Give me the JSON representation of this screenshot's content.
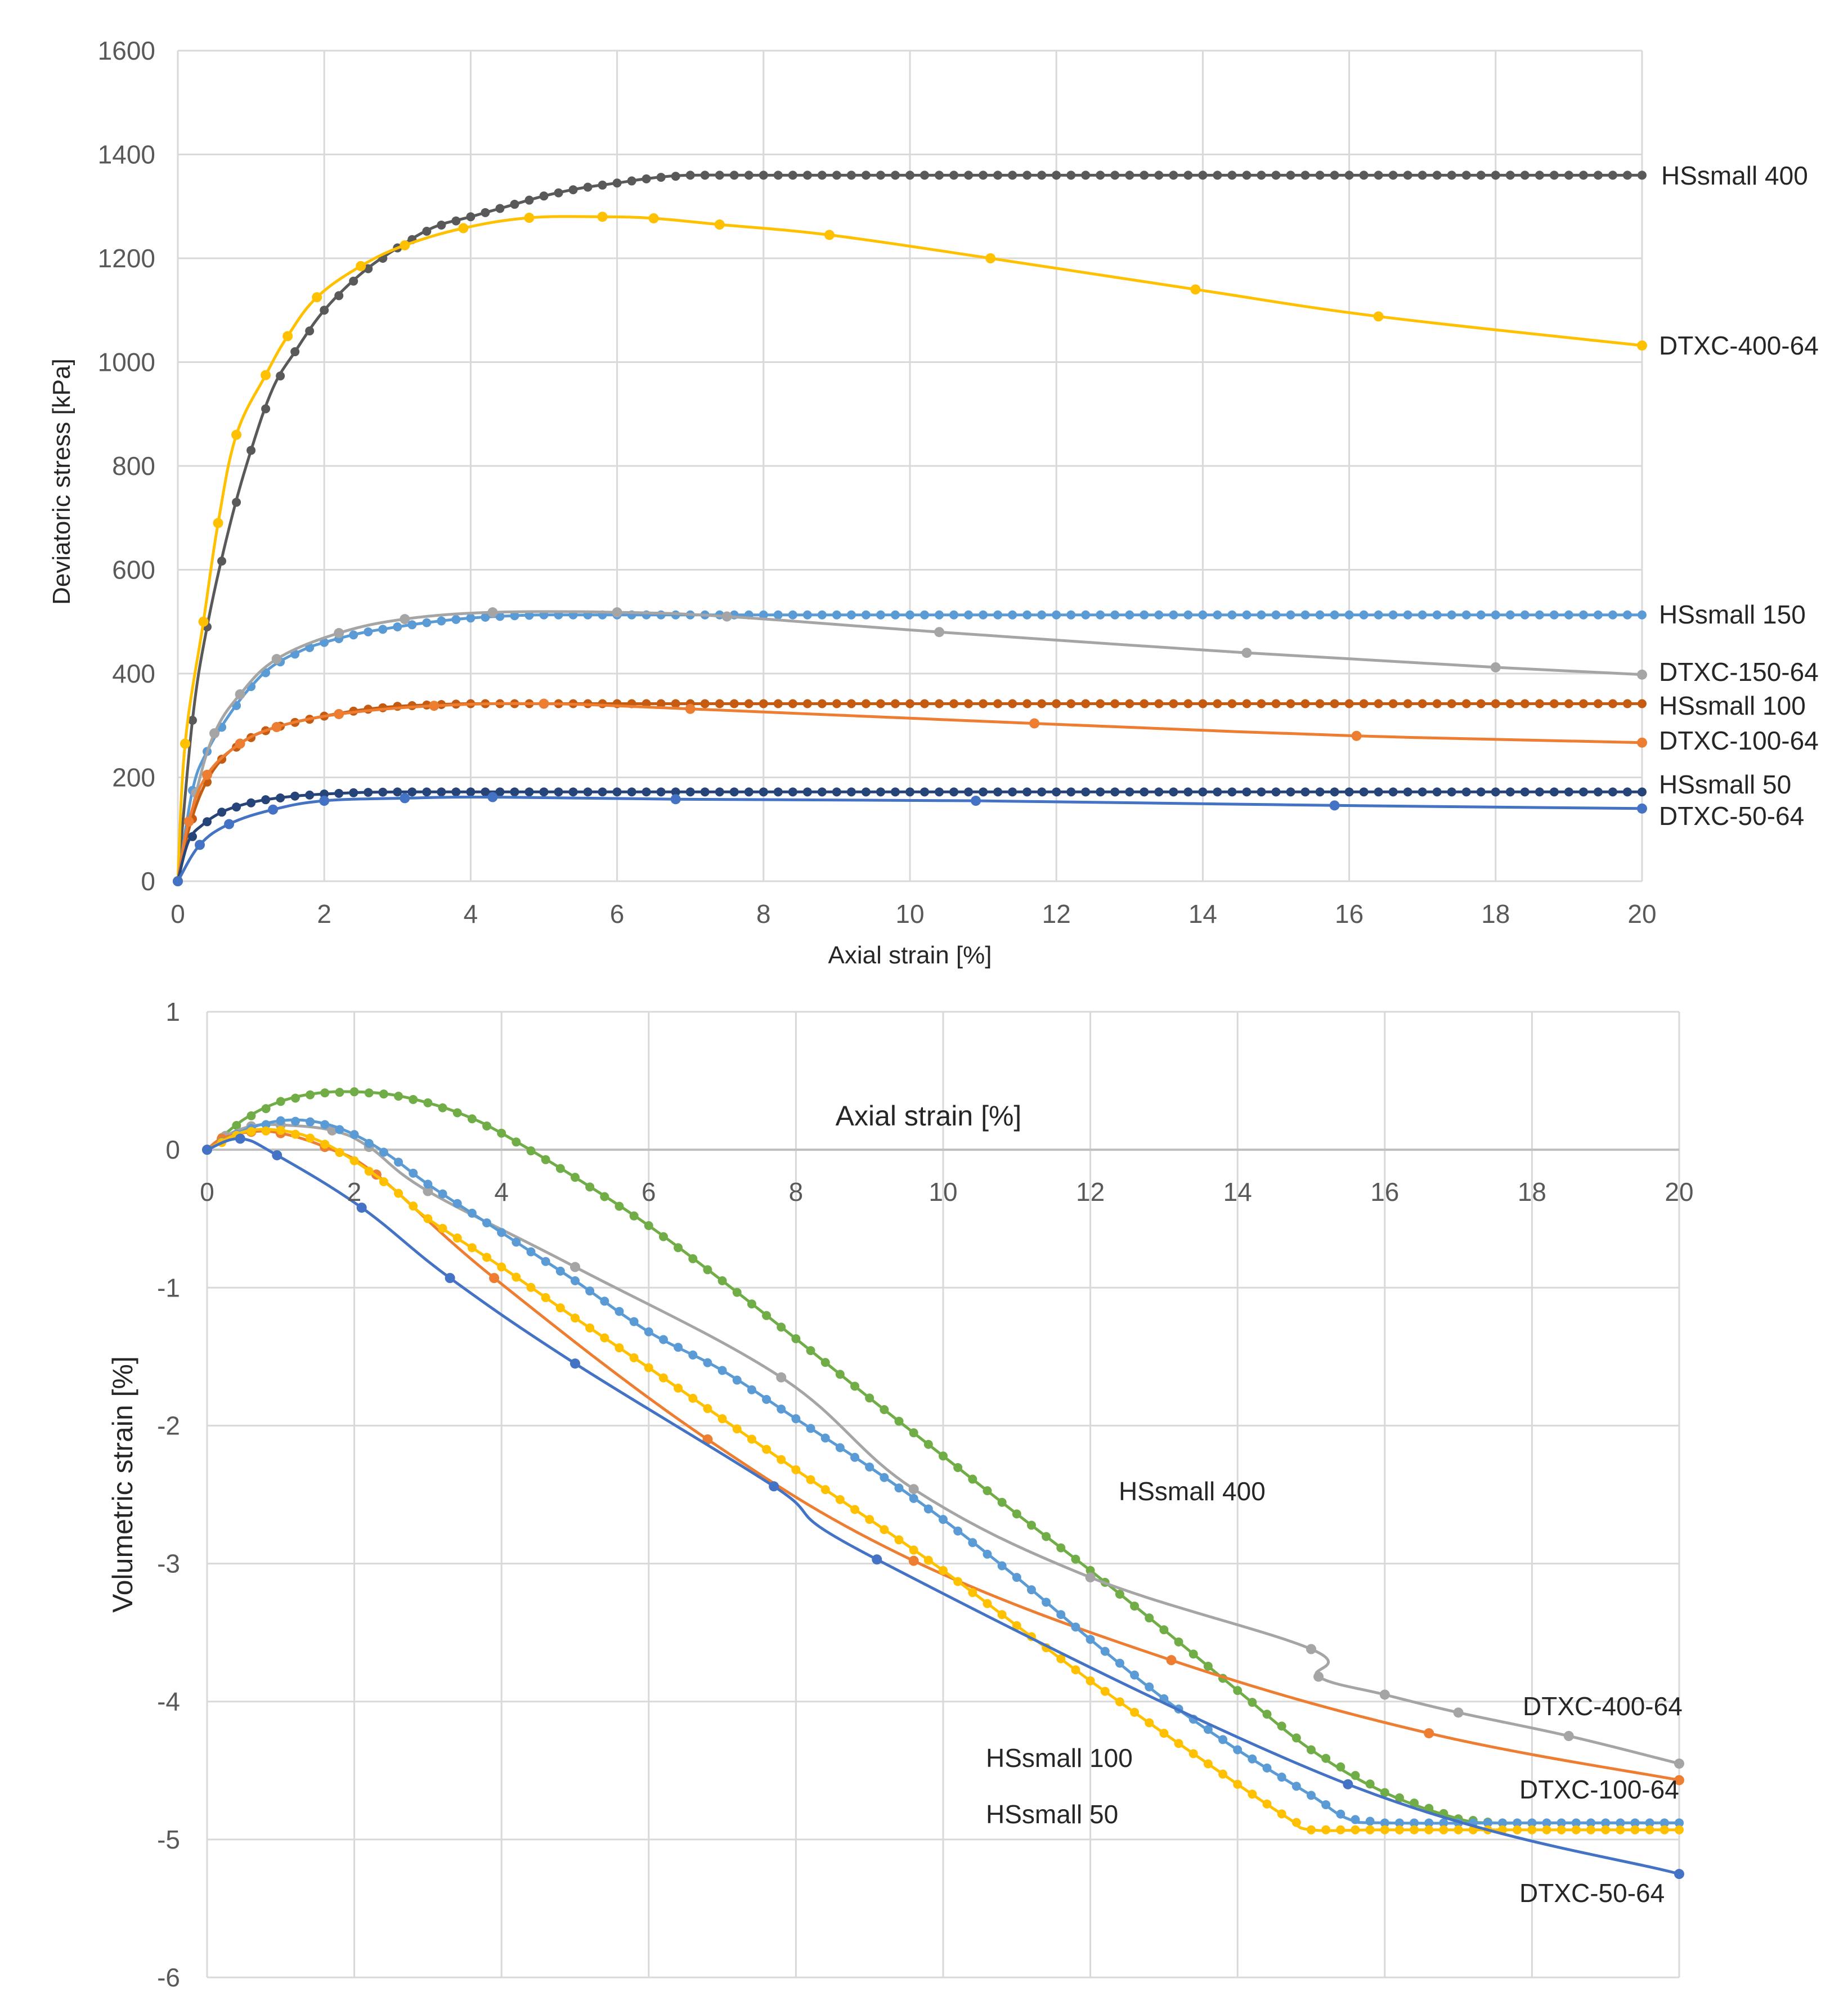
{
  "chart_data": [
    {
      "type": "line",
      "xlabel": "Axial strain [%]",
      "ylabel": "Deviatoric stress [kPa]",
      "xlim": [
        0,
        20
      ],
      "ylim": [
        0,
        1600
      ],
      "xticks": [
        "0",
        "2",
        "4",
        "6",
        "8",
        "10",
        "12",
        "14",
        "16",
        "18",
        "20"
      ],
      "yticks": [
        "0",
        "200",
        "400",
        "600",
        "800",
        "1000",
        "1200",
        "1400",
        "1600"
      ],
      "grid": true,
      "legend": "labels at right end of each series",
      "series": [
        {
          "name": "HSsmall 400",
          "color": "#595959",
          "marker_spacing": "dense",
          "x": [
            0,
            0.2,
            0.4,
            0.7,
            1.0,
            1.3,
            1.6,
            2.0,
            2.5,
            3.0,
            3.5,
            4.0,
            4.5,
            5.0,
            5.5,
            6.0,
            6.5,
            7.0,
            8,
            10,
            12,
            14,
            16,
            18,
            20
          ],
          "y": [
            0,
            310,
            490,
            680,
            830,
            950,
            1020,
            1100,
            1170,
            1220,
            1260,
            1280,
            1300,
            1320,
            1335,
            1345,
            1355,
            1360,
            1360,
            1360,
            1360,
            1360,
            1360,
            1360,
            1360
          ]
        },
        {
          "name": "DTXC-400-64",
          "color": "#FFC000",
          "marker_spacing": "sparse",
          "x": [
            0,
            0.1,
            0.35,
            0.55,
            0.8,
            1.2,
            1.5,
            1.9,
            2.5,
            3.1,
            3.9,
            4.8,
            5.8,
            6.5,
            7.4,
            8.9,
            11.1,
            13.9,
            16.4,
            20
          ],
          "y": [
            0,
            265,
            500,
            690,
            860,
            975,
            1050,
            1125,
            1185,
            1225,
            1258,
            1278,
            1280,
            1277,
            1265,
            1245,
            1200,
            1140,
            1088,
            1032
          ]
        },
        {
          "name": "HSsmall 150",
          "color": "#5B9BD5",
          "marker_spacing": "dense",
          "x": [
            0,
            0.2,
            0.4,
            0.7,
            1.0,
            1.3,
            1.7,
            2.0,
            2.5,
            3.0,
            3.5,
            4.0,
            4.5,
            5.0,
            6,
            8,
            10,
            12,
            14,
            16,
            18,
            20
          ],
          "y": [
            0,
            175,
            250,
            320,
            375,
            415,
            445,
            460,
            478,
            490,
            500,
            507,
            511,
            513,
            513,
            513,
            513,
            513,
            513,
            513,
            513,
            513
          ]
        },
        {
          "name": "DTXC-150-64",
          "color": "#A5A5A5",
          "marker_spacing": "sparse",
          "x": [
            0,
            0.25,
            0.5,
            0.85,
            1.35,
            2.2,
            3.1,
            4.3,
            6.0,
            7.5,
            10.4,
            14.6,
            18.0,
            20
          ],
          "y": [
            0,
            170,
            285,
            360,
            428,
            478,
            505,
            518,
            518,
            510,
            480,
            440,
            412,
            398
          ]
        },
        {
          "name": "HSsmall 100",
          "color": "#C55A11",
          "marker_spacing": "dense",
          "x": [
            0,
            0.15,
            0.35,
            0.6,
            0.9,
            1.2,
            1.5,
            2.0,
            2.5,
            3.0,
            3.5,
            4.0,
            5,
            6,
            8,
            10,
            12,
            14,
            16,
            18,
            20
          ],
          "y": [
            0,
            100,
            180,
            235,
            270,
            290,
            303,
            318,
            330,
            337,
            340,
            342,
            342,
            342,
            342,
            342,
            342,
            342,
            342,
            342,
            342
          ]
        },
        {
          "name": "DTXC-100-64",
          "color": "#ED7D31",
          "marker_spacing": "sparse",
          "x": [
            0,
            0.15,
            0.4,
            0.85,
            1.35,
            2.2,
            3.5,
            5.0,
            7.0,
            11.7,
            16.1,
            20
          ],
          "y": [
            0,
            115,
            205,
            265,
            297,
            322,
            338,
            342,
            332,
            304,
            280,
            267
          ]
        },
        {
          "name": "HSsmall 50",
          "color": "#264478",
          "marker_spacing": "dense",
          "x": [
            0,
            0.15,
            0.35,
            0.6,
            0.9,
            1.2,
            1.6,
            2.0,
            2.5,
            3.0,
            3.5,
            4,
            6,
            8,
            10,
            12,
            14,
            16,
            18,
            20
          ],
          "y": [
            0,
            78,
            110,
            133,
            148,
            157,
            164,
            168,
            171,
            172,
            172,
            172,
            172,
            172,
            172,
            172,
            172,
            172,
            172,
            172
          ]
        },
        {
          "name": "DTXC-50-64",
          "color": "#4472C4",
          "marker_spacing": "sparse",
          "x": [
            0,
            0.3,
            0.7,
            1.3,
            2.0,
            3.1,
            4.3,
            6.8,
            10.9,
            15.8,
            20
          ],
          "y": [
            0,
            70,
            110,
            138,
            155,
            160,
            162,
            158,
            155,
            146,
            140
          ]
        }
      ]
    },
    {
      "type": "line",
      "xlabel": "Axial strain [%]",
      "ylabel": "Volumetric strain [%]",
      "xlim": [
        0,
        20
      ],
      "ylim": [
        -6,
        1
      ],
      "xticks": [
        "0",
        "2",
        "4",
        "6",
        "8",
        "10",
        "12",
        "14",
        "16",
        "18",
        "20"
      ],
      "yticks": [
        "-6",
        "-5",
        "-4",
        "-3",
        "-2",
        "-1",
        "0",
        "1"
      ],
      "grid": true,
      "legend": "labels placed next to series",
      "series": [
        {
          "name": "HSsmall 400",
          "color": "#70AD47",
          "marker_spacing": "dense",
          "x": [
            0,
            0.5,
            1.0,
            1.5,
            2.0,
            2.5,
            3.0,
            3.5,
            4.0,
            5,
            6,
            7,
            8,
            9,
            10,
            11,
            12,
            13,
            14,
            15,
            16,
            17,
            17.5,
            18,
            19,
            20
          ],
          "y": [
            0,
            0.22,
            0.35,
            0.41,
            0.42,
            0.4,
            0.34,
            0.25,
            0.12,
            -0.2,
            -0.55,
            -0.95,
            -1.37,
            -1.8,
            -2.22,
            -2.64,
            -3.05,
            -3.48,
            -3.92,
            -4.35,
            -4.66,
            -4.85,
            -4.88,
            -4.88,
            -4.88,
            -4.88
          ]
        },
        {
          "name": "DTXC-400-64",
          "color": "#A5A5A5",
          "marker_spacing": "sparse",
          "x": [
            0,
            0.25,
            0.6,
            1.0,
            1.7,
            2.2,
            3.0,
            5.0,
            7.8,
            9.6,
            12.0,
            15.0,
            15.1,
            16.0,
            17.0,
            18.5,
            20
          ],
          "y": [
            0,
            0.1,
            0.17,
            0.18,
            0.14,
            0.02,
            -0.3,
            -0.85,
            -1.65,
            -2.46,
            -3.1,
            -3.62,
            -3.82,
            -3.95,
            -4.08,
            -4.25,
            -4.45
          ]
        },
        {
          "name": "DTXC-100-64",
          "color": "#ED7D31",
          "marker_spacing": "sparse",
          "x": [
            0,
            0.2,
            0.6,
            1.0,
            1.6,
            2.3,
            3.9,
            6.8,
            9.6,
            13.1,
            16.6,
            20
          ],
          "y": [
            0,
            0.08,
            0.13,
            0.12,
            0.02,
            -0.18,
            -0.93,
            -2.1,
            -2.98,
            -3.7,
            -4.23,
            -4.57
          ]
        },
        {
          "name": "HSsmall 100",
          "color": "#5B9BD5",
          "marker_spacing": "dense",
          "x": [
            0,
            0.5,
            1.0,
            1.5,
            2.0,
            2.5,
            3,
            4,
            5,
            6,
            7,
            8,
            9,
            10,
            11,
            12,
            13,
            14,
            15,
            15.5,
            16,
            18,
            20
          ],
          "y": [
            0,
            0.14,
            0.21,
            0.2,
            0.11,
            -0.05,
            -0.25,
            -0.6,
            -0.95,
            -1.32,
            -1.6,
            -1.95,
            -2.3,
            -2.68,
            -3.1,
            -3.55,
            -3.98,
            -4.35,
            -4.68,
            -4.85,
            -4.88,
            -4.88,
            -4.88
          ]
        },
        {
          "name": "HSsmall 50",
          "color": "#FFC000",
          "marker_spacing": "dense",
          "x": [
            0,
            0.5,
            1.0,
            1.5,
            2.0,
            2.5,
            3,
            4,
            5,
            6,
            7,
            8,
            9,
            10,
            11,
            12,
            13,
            14,
            14.7,
            15.0,
            16,
            18,
            20
          ],
          "y": [
            0,
            0.13,
            0.14,
            0.07,
            -0.08,
            -0.27,
            -0.5,
            -0.85,
            -1.22,
            -1.58,
            -1.95,
            -2.32,
            -2.68,
            -3.05,
            -3.45,
            -3.85,
            -4.23,
            -4.6,
            -4.85,
            -4.93,
            -4.93,
            -4.93,
            -4.93
          ]
        },
        {
          "name": "DTXC-50-64",
          "color": "#4472C4",
          "marker_spacing": "sparse",
          "x": [
            0,
            0.45,
            0.95,
            2.1,
            3.3,
            5.0,
            7.7,
            9.1,
            15.5,
            20
          ],
          "y": [
            0,
            0.08,
            -0.04,
            -0.42,
            -0.93,
            -1.55,
            -2.44,
            -2.97,
            -4.6,
            -5.25
          ]
        }
      ]
    }
  ]
}
